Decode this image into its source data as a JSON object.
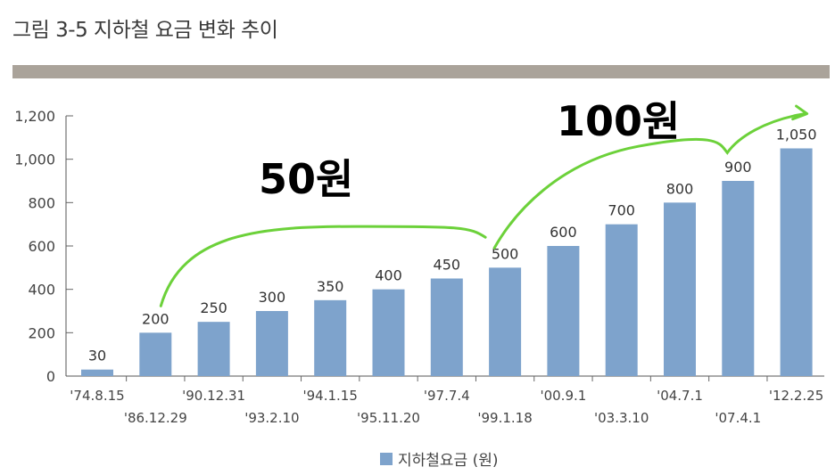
{
  "title": "그림 3-5 지하철 요금 변화 추이",
  "chart_data": {
    "type": "bar",
    "categories": [
      "'74.8.15",
      "'86.12.29",
      "'90.12.31",
      "'93.2.10",
      "'94.1.15",
      "'95.11.20",
      "'97.7.4",
      "'99.1.18",
      "'00.9.1",
      "'03.3.10",
      "'04.7.1",
      "'07.4.1",
      "'12.2.25"
    ],
    "series": [
      {
        "name": "지하철요금 (원)",
        "values": [
          30,
          200,
          250,
          300,
          350,
          400,
          450,
          500,
          600,
          700,
          800,
          900,
          1050
        ]
      }
    ],
    "data_labels": [
      "30",
      "200",
      "250",
      "300",
      "350",
      "400",
      "450",
      "500",
      "600",
      "700",
      "800",
      "900",
      "1,050"
    ],
    "yticks": [
      "0",
      "200",
      "400",
      "600",
      "800",
      "1,000",
      "1,200"
    ],
    "ylim": [
      0,
      1200
    ],
    "legend": "bottom-center",
    "bar_color": "#7ea3cc",
    "annotations": [
      {
        "text": "50원",
        "span": [
          "'86.12.29",
          "'99.1.18"
        ],
        "color": "#000000",
        "arrow_color": "#6cd13a"
      },
      {
        "text": "100원",
        "span": [
          "'99.1.18",
          "'12.2.25"
        ],
        "color": "#000000",
        "arrow_color": "#6cd13a"
      }
    ]
  }
}
